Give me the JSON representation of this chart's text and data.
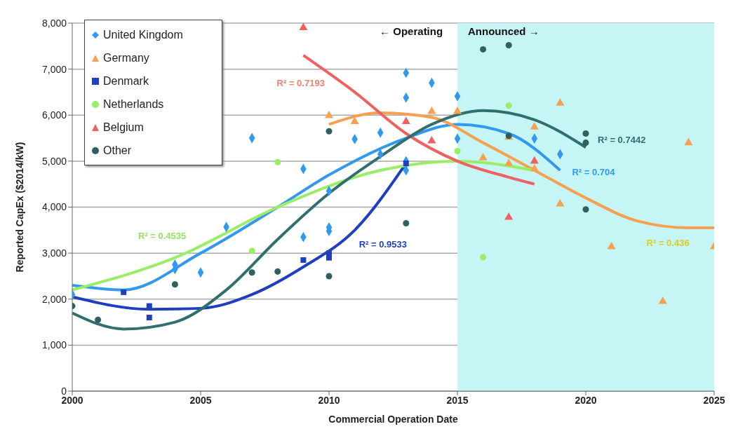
{
  "chart_data": {
    "type": "scatter",
    "xlabel": "Commercial Operation Date",
    "ylabel": "Reported CapEx ($2014/kW)",
    "xlim": [
      2000,
      2025
    ],
    "xticks": [
      2000,
      2005,
      2010,
      2015,
      2020,
      2025
    ],
    "ylim": [
      0,
      8000
    ],
    "yticks": [
      0,
      {
        "value": 1000,
        "label": "1,000"
      },
      {
        "value": 2000,
        "label": "2,000"
      },
      {
        "value": 3000,
        "label": "3,000"
      },
      {
        "value": 4000,
        "label": "4,000"
      },
      {
        "value": 5000,
        "label": "5,000"
      },
      {
        "value": 6000,
        "label": "6,000"
      },
      {
        "value": 7000,
        "label": "7,000"
      },
      {
        "value": 8000,
        "label": "8,000"
      }
    ],
    "grid": "y",
    "legend": "top left",
    "bands": [
      {
        "axis": "x",
        "from": 2015,
        "to": 2025,
        "color": "#c6f5f5"
      }
    ],
    "annotations": [
      "R² = 0.7193",
      "R² = 0.4535",
      "R² = 0.9533",
      "R² = 0.7442",
      "R² = 0.704",
      "R² = 0.436",
      "← Operating",
      "Announced →"
    ],
    "series": [
      {
        "name": "United Kingdom",
        "marker": "diamond",
        "color": "#3399ee",
        "x": [
          2000,
          2004,
          2004,
          2005,
          2006,
          2007,
          2009,
          2009,
          2010,
          2010,
          2010,
          2011,
          2012,
          2012,
          2013,
          2013,
          2013,
          2013,
          2014,
          2015,
          2015,
          2018,
          2019
        ],
        "values": [
          2100,
          2750,
          2650,
          2580,
          3570,
          5500,
          4830,
          3350,
          4350,
          3560,
          3480,
          5480,
          5620,
          5150,
          6920,
          6380,
          5000,
          4800,
          6700,
          6410,
          5490,
          5490,
          5150
        ]
      },
      {
        "name": "Germany",
        "marker": "triangle",
        "color": "#f7a050",
        "x": [
          2010,
          2011,
          2014,
          2015,
          2016,
          2017,
          2017,
          2018,
          2018,
          2019,
          2019,
          2021,
          2023,
          2024,
          2025
        ],
        "values": [
          5990,
          5860,
          6080,
          6080,
          5070,
          5520,
          4950,
          5740,
          4830,
          6260,
          4070,
          3140,
          1950,
          5400,
          3140
        ]
      },
      {
        "name": "Denmark",
        "marker": "square",
        "color": "#1f3fbf",
        "x": [
          2002,
          2003,
          2003,
          2009,
          2010,
          2010,
          2013
        ],
        "values": [
          2150,
          1850,
          1600,
          2850,
          3000,
          2900,
          4950
        ]
      },
      {
        "name": "Netherlands",
        "marker": "circle",
        "color": "#99ee66",
        "x": [
          2007,
          2008,
          2015,
          2016,
          2017
        ],
        "values": [
          3050,
          4980,
          5220,
          2910,
          6210
        ]
      },
      {
        "name": "Belgium",
        "marker": "triangle",
        "color": "#f06060",
        "x": [
          2009,
          2013,
          2014,
          2017,
          2018
        ],
        "values": [
          7900,
          5860,
          5440,
          3780,
          5000
        ]
      },
      {
        "name": "Other",
        "marker": "circle",
        "color": "#2f5f5f",
        "x": [
          2000,
          2001,
          2004,
          2007,
          2008,
          2010,
          2010,
          2013,
          2016,
          2017,
          2017,
          2020,
          2020,
          2020
        ],
        "values": [
          1850,
          1550,
          2320,
          2580,
          2600,
          5650,
          2500,
          3650,
          7430,
          7520,
          5550,
          5600,
          5400,
          3950
        ]
      },
      {
        "type": "line",
        "color": "#3399ee",
        "x": [
          2000,
          2002,
          2005,
          2008,
          2010,
          2013,
          2015,
          2017,
          2019
        ],
        "values": [
          2300,
          2200,
          3000,
          4000,
          4700,
          5500,
          5800,
          5600,
          4800
        ]
      },
      {
        "type": "line",
        "color": "#f7a050",
        "x": [
          2010,
          2012,
          2014,
          2016,
          2018,
          2020,
          2022,
          2024,
          2025
        ],
        "values": [
          5800,
          6050,
          5950,
          5400,
          4800,
          4200,
          3700,
          3550,
          3550
        ]
      },
      {
        "type": "line",
        "color": "#1f3fbf",
        "x": [
          2000,
          2003,
          2005,
          2007,
          2009,
          2011,
          2013
        ],
        "values": [
          2050,
          1780,
          1800,
          2100,
          2700,
          3500,
          4950
        ]
      },
      {
        "type": "line",
        "color": "#99ee66",
        "x": [
          2000,
          2004,
          2008,
          2012,
          2015,
          2018
        ],
        "values": [
          2200,
          2900,
          4000,
          4800,
          5000,
          4800
        ]
      },
      {
        "type": "line",
        "color": "#f06060",
        "x": [
          2009,
          2011,
          2013,
          2015,
          2017,
          2018
        ],
        "values": [
          7300,
          6500,
          5600,
          5000,
          4650,
          4500
        ]
      },
      {
        "type": "line",
        "color": "#2f6f6f",
        "x": [
          2000,
          2002,
          2004,
          2006,
          2008,
          2010,
          2012,
          2014,
          2016,
          2018,
          2020
        ],
        "values": [
          1700,
          1350,
          1500,
          2200,
          3300,
          4300,
          5100,
          5800,
          6100,
          5900,
          5300
        ]
      }
    ]
  }
}
